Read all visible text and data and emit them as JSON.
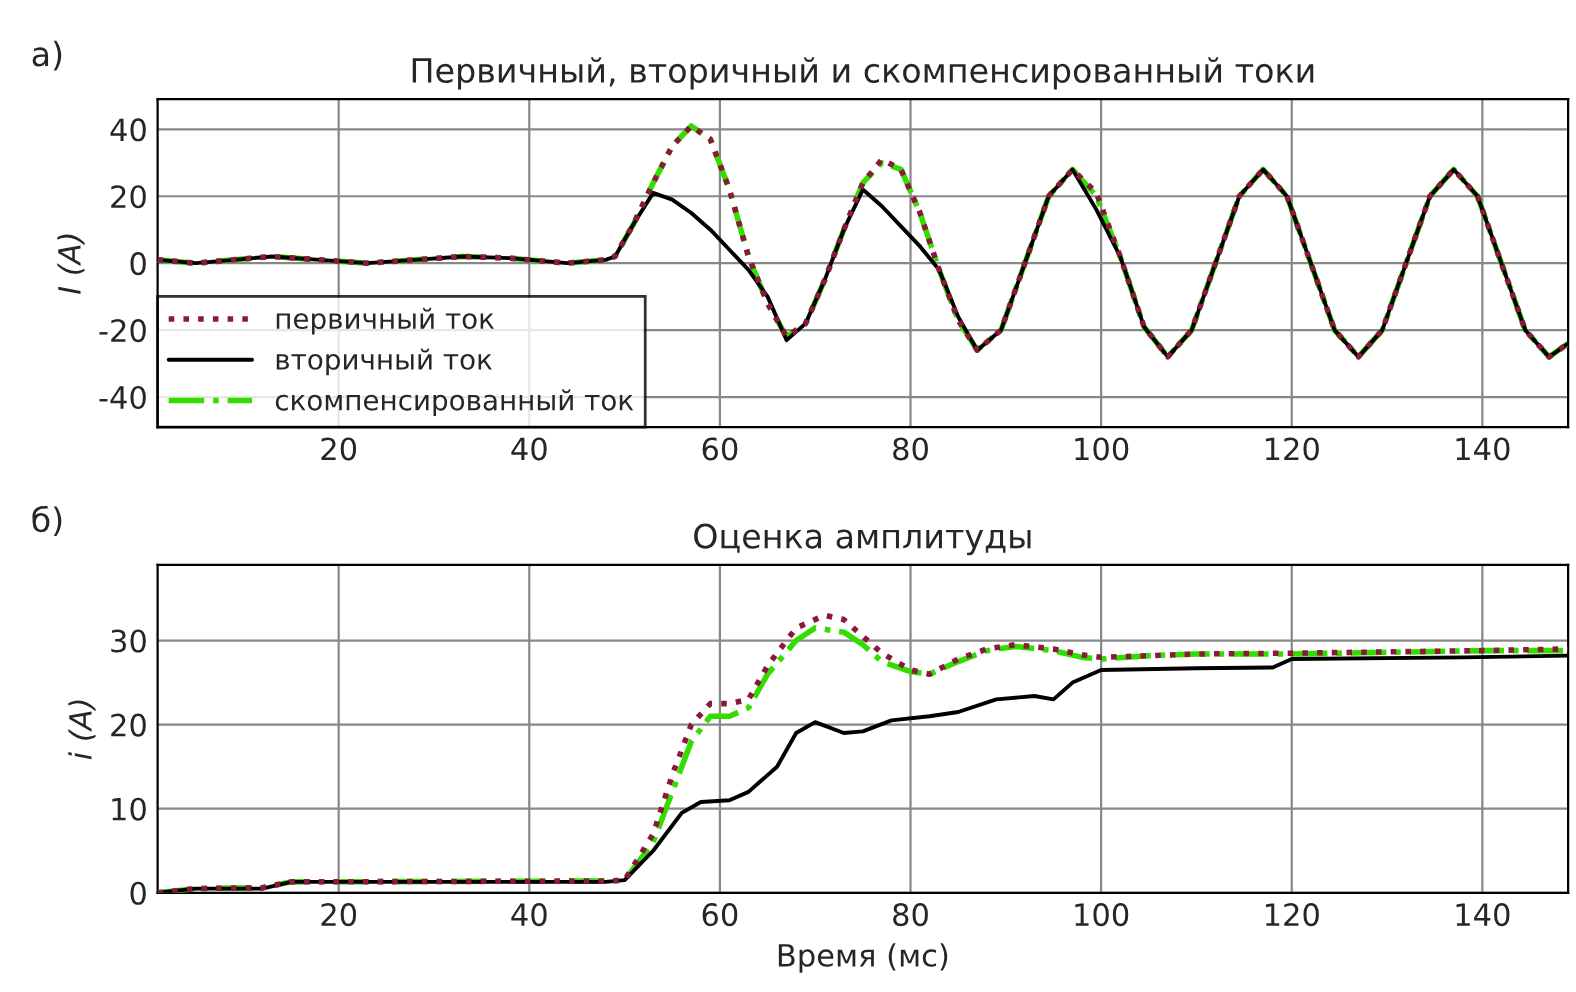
{
  "chart_data": [
    {
      "type": "line",
      "title": "Первичный, вторичный и скомпенсированный токи",
      "ylabel": "I (A)",
      "annotations": [
        "а)"
      ],
      "xlim": [
        1,
        149
      ],
      "xticks": [
        20,
        40,
        60,
        80,
        100,
        120,
        140
      ],
      "ylim": [
        -49,
        49
      ],
      "yticks": [
        -40,
        -20,
        0,
        20,
        40
      ],
      "grid": true,
      "legend": "bottom left",
      "x": [
        1,
        5,
        9,
        13,
        18,
        23,
        28,
        33,
        38,
        44,
        48,
        49,
        51,
        53,
        55,
        57,
        59,
        61,
        63,
        65,
        67,
        69,
        71,
        73,
        75,
        77,
        79,
        81,
        83,
        85,
        87,
        89.5,
        92,
        94.5,
        97,
        99.5,
        102,
        104.5,
        107,
        109.5,
        112,
        114.5,
        117,
        119.5,
        122,
        124.5,
        127,
        129.5,
        132,
        134.5,
        137,
        139.5,
        142,
        144.5,
        147,
        149
      ],
      "series": [
        {
          "name": "первичный ток",
          "color": "#8b1a3a",
          "line_style": "dotted",
          "values": [
            1,
            0,
            1,
            2,
            1,
            0,
            1,
            2,
            1.5,
            0,
            1,
            2,
            12,
            24,
            35,
            41,
            37,
            22,
            2,
            -12,
            -22,
            -18,
            -5,
            10,
            24,
            31,
            28,
            15,
            -2,
            -17,
            -26,
            -20,
            0,
            20,
            28,
            21,
            2,
            -19,
            -28,
            -20,
            0,
            20,
            28,
            20,
            0,
            -20,
            -28,
            -20,
            0,
            20,
            28,
            20,
            0,
            -20,
            -28,
            -24
          ]
        },
        {
          "name": "вторичный ток",
          "color": "#000000",
          "line_style": "solid",
          "values": [
            1,
            0,
            1,
            2,
            1,
            0,
            1,
            2,
            1.5,
            0,
            1,
            2,
            12,
            21,
            19,
            15,
            10,
            4,
            -2,
            -10,
            -23,
            -18,
            -5,
            10,
            22,
            17,
            11,
            5,
            -2,
            -16,
            -26,
            -20,
            0,
            20,
            28,
            16,
            2,
            -19,
            -28,
            -20,
            0,
            20,
            28,
            20,
            0,
            -20,
            -28,
            -20,
            0,
            20,
            28,
            20,
            0,
            -20,
            -28,
            -24
          ]
        },
        {
          "name": "скомпенсированный ток",
          "color": "#33dd00",
          "line_style": "dashdot",
          "values": [
            1,
            0,
            1,
            2,
            1,
            0,
            1,
            2,
            1.5,
            0,
            1,
            2,
            12,
            24,
            35,
            41,
            37,
            22,
            2,
            -12,
            -22,
            -18,
            -5,
            10,
            24,
            30,
            28,
            15,
            -2,
            -17,
            -26,
            -20,
            0,
            20,
            28,
            20,
            2,
            -19,
            -28,
            -20,
            0,
            20,
            28,
            20,
            0,
            -20,
            -28,
            -20,
            0,
            20,
            28,
            20,
            0,
            -20,
            -28,
            -24
          ]
        }
      ]
    },
    {
      "type": "line",
      "title": "Оценка амплитуды",
      "xlabel": "Время (мс)",
      "ylabel": "i (A)",
      "annotations": [
        "б)"
      ],
      "xlim": [
        1,
        149
      ],
      "xticks": [
        20,
        40,
        60,
        80,
        100,
        120,
        140
      ],
      "ylim": [
        0,
        39
      ],
      "yticks": [
        0,
        10,
        20,
        30
      ],
      "grid": true,
      "series": [
        {
          "color": "#8b1a3a",
          "line_style": "dotted",
          "x": [
            1,
            5,
            12,
            15,
            48,
            50,
            53,
            55,
            57,
            59,
            61,
            63,
            65,
            68,
            71,
            73,
            75,
            77,
            80,
            82,
            85,
            88,
            91,
            95,
            98,
            100,
            110,
            120,
            140,
            149
          ],
          "values": [
            0,
            0.5,
            0.6,
            1.3,
            1.4,
            1.5,
            7,
            14,
            20,
            22.5,
            22.5,
            23,
            27,
            31.5,
            33,
            32.5,
            30.5,
            28.5,
            26.5,
            26,
            27.8,
            29,
            29.5,
            29,
            28.3,
            28,
            28.4,
            28.5,
            28.8,
            29
          ]
        },
        {
          "color": "#000000",
          "line_style": "solid",
          "x": [
            1,
            5,
            12,
            15,
            48,
            50,
            53,
            56,
            58,
            61,
            63,
            66,
            68,
            70,
            73,
            75,
            78,
            82,
            85,
            89,
            93,
            95,
            97,
            100,
            110,
            118,
            120,
            138,
            149
          ],
          "values": [
            0,
            0.5,
            0.5,
            1.3,
            1.3,
            1.5,
            5,
            9.5,
            10.8,
            11,
            12,
            15,
            19,
            20.3,
            19,
            19.2,
            20.5,
            21,
            21.5,
            23,
            23.4,
            23,
            25,
            26.5,
            26.7,
            26.8,
            27.8,
            28,
            28.2
          ]
        },
        {
          "color": "#33dd00",
          "line_style": "dashdot",
          "x": [
            1,
            5,
            12,
            15,
            48,
            50,
            53,
            55,
            57,
            59,
            61,
            63,
            65,
            68,
            70,
            73,
            75,
            77,
            80,
            82,
            85,
            88,
            91,
            95,
            98,
            100,
            105,
            110,
            120,
            130,
            140,
            149
          ],
          "values": [
            0,
            0.5,
            0.6,
            1.3,
            1.4,
            1.5,
            6,
            12,
            18,
            21,
            21,
            22,
            26,
            30,
            31.5,
            31,
            29.5,
            27.5,
            26.3,
            26,
            27.5,
            28.8,
            29.3,
            28.8,
            28,
            27.8,
            28.2,
            28.4,
            28.4,
            28.6,
            28.8,
            28.8
          ]
        }
      ]
    }
  ]
}
